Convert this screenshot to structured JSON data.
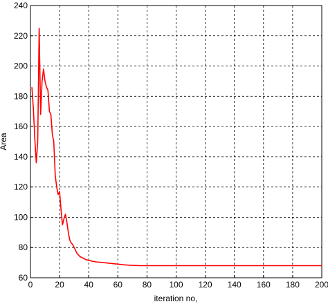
{
  "chart_data": {
    "type": "line",
    "title": "",
    "xlabel": "iteration no,",
    "ylabel": "Area",
    "xlim": [
      0,
      200
    ],
    "ylim": [
      60,
      240
    ],
    "xticks": [
      0,
      20,
      40,
      60,
      80,
      100,
      120,
      140,
      160,
      180,
      200
    ],
    "yticks": [
      60,
      80,
      100,
      120,
      140,
      160,
      180,
      200,
      220,
      240
    ],
    "grid": true,
    "legend": "none",
    "series": [
      {
        "color": "#ff0000",
        "x": [
          1,
          2,
          3,
          4,
          5,
          6,
          7,
          8,
          9,
          10,
          11,
          12,
          13,
          14,
          15,
          16,
          17,
          18,
          19,
          20,
          21,
          22,
          23,
          24,
          25,
          26,
          27,
          28,
          29,
          30,
          31,
          32,
          33,
          34,
          35,
          36,
          37,
          38,
          40,
          42,
          45,
          50,
          55,
          60,
          65,
          70,
          75,
          80,
          90,
          100,
          120,
          150,
          200
        ],
        "y": [
          186,
          172,
          152,
          136,
          150,
          225,
          168,
          190,
          198,
          190,
          186,
          184,
          170,
          168,
          155,
          150,
          128,
          120,
          115,
          117,
          105,
          95,
          99,
          102,
          97,
          90,
          85,
          83,
          82,
          80,
          78,
          76,
          75,
          74,
          73.5,
          73,
          72.5,
          72,
          71.5,
          71,
          70.5,
          70,
          69.5,
          69,
          68.5,
          68.2,
          68,
          68,
          68,
          68,
          68,
          68,
          68
        ]
      }
    ]
  }
}
